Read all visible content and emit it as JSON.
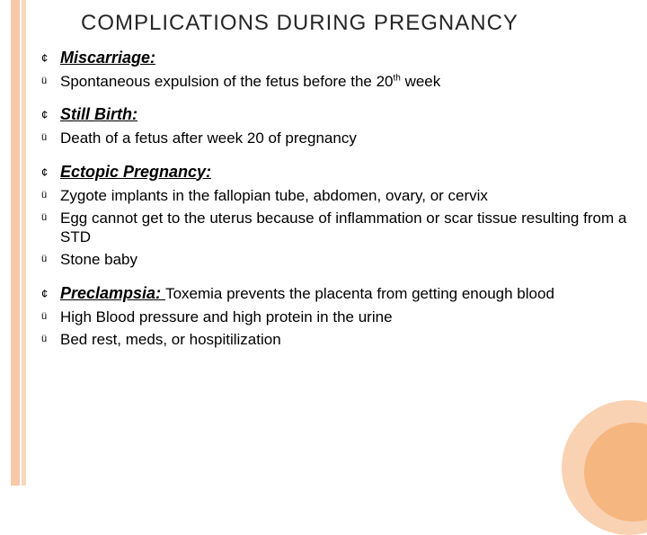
{
  "theme": {
    "accent": "#f7c9a8",
    "accent_bar2": "#f9d7bd",
    "circle_outer": "#f9d2b3",
    "circle_inner": "#f6b67f",
    "text": "#000000",
    "title_color": "#262626"
  },
  "title": "COMPLICATIONS DURING PREGNANCY",
  "sections": [
    {
      "heading": "Miscarriage:",
      "heading_inline": "",
      "points": [
        {
          "pre": "Spontaneous expulsion of the fetus before the 20",
          "sup": "th",
          "post": " week"
        }
      ]
    },
    {
      "heading": "Still Birth:",
      "heading_inline": "",
      "points": [
        {
          "pre": "Death of a fetus after week 20 of pregnancy",
          "sup": "",
          "post": ""
        }
      ]
    },
    {
      "heading": "Ectopic Pregnancy:",
      "heading_inline": "",
      "points": [
        {
          "pre": "Zygote implants in the fallopian tube, abdomen, ovary, or cervix",
          "sup": "",
          "post": ""
        },
        {
          "pre": "Egg cannot get to the uterus because of inflammation or scar tissue resulting from a STD",
          "sup": "",
          "post": ""
        },
        {
          "pre": "Stone baby",
          "sup": "",
          "post": ""
        }
      ]
    },
    {
      "heading": "Preclampsia: ",
      "heading_inline": "Toxemia prevents the placenta from getting enough blood",
      "points": [
        {
          "pre": "High Blood pressure and high protein in the urine",
          "sup": "",
          "post": ""
        },
        {
          "pre": "Bed rest, meds, or hospitilization",
          "sup": "",
          "post": ""
        }
      ]
    }
  ]
}
